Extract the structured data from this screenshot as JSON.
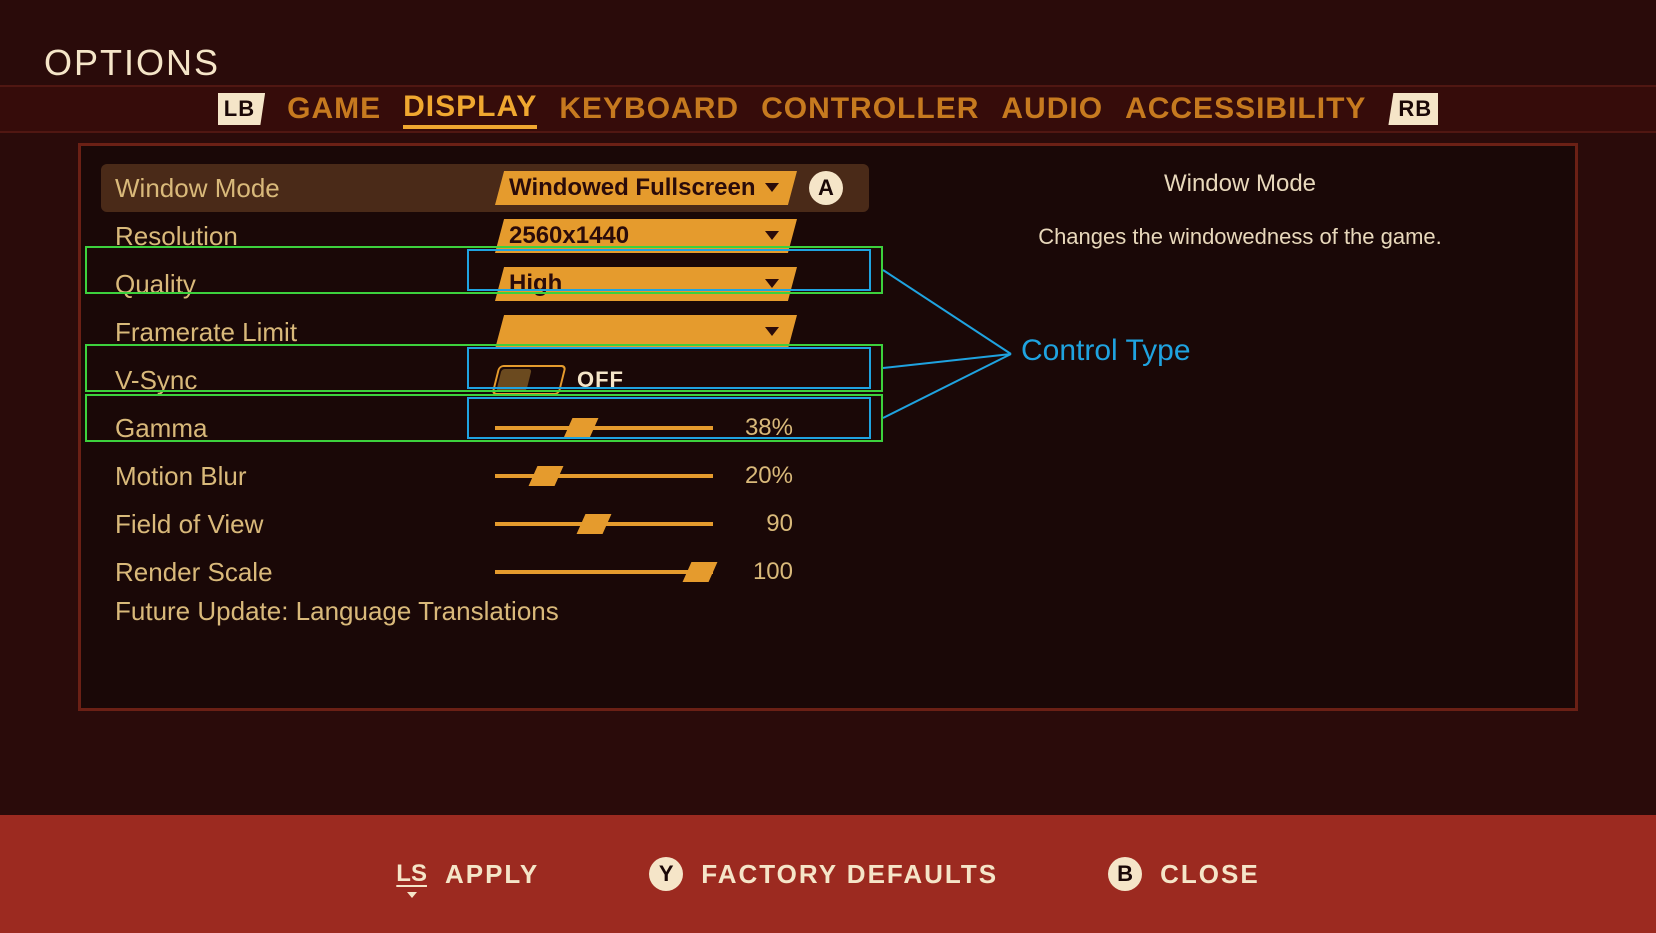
{
  "page_title": "OPTIONS",
  "bumper_left": "LB",
  "bumper_right": "RB",
  "tabs": [
    "GAME",
    "DISPLAY",
    "KEYBOARD",
    "CONTROLLER",
    "AUDIO",
    "ACCESSIBILITY"
  ],
  "active_tab_index": 1,
  "a_button": "A",
  "settings": [
    {
      "label": "Window Mode",
      "type": "dropdown",
      "value": "Windowed Fullscreen",
      "highlighted": true,
      "show_a": true
    },
    {
      "label": "Resolution",
      "type": "dropdown",
      "value": "2560x1440"
    },
    {
      "label": "Quality",
      "type": "dropdown",
      "value": "High"
    },
    {
      "label": "Framerate Limit",
      "type": "dropdown",
      "value": ""
    },
    {
      "label": "V-Sync",
      "type": "toggle",
      "value": "OFF"
    },
    {
      "label": "Gamma",
      "type": "slider",
      "percent": 38,
      "display": "38%"
    },
    {
      "label": "Motion Blur",
      "type": "slider",
      "percent": 20,
      "display": "20%"
    },
    {
      "label": "Field of View",
      "type": "slider",
      "percent": 45,
      "display": "90"
    },
    {
      "label": "Render Scale",
      "type": "slider",
      "percent": 100,
      "display": "100"
    }
  ],
  "future_note": "Future Update: Language Translations",
  "info": {
    "title": "Window Mode",
    "description": "Changes the windowedness of the game."
  },
  "annotation_label": "Control Type",
  "footer": {
    "ls": "LS",
    "apply": "APPLY",
    "y": "Y",
    "factory": "FACTORY DEFAULTS",
    "b": "B",
    "close": "CLOSE"
  },
  "colors": {
    "orange": "#e59b2d",
    "cream": "#f5e5c8",
    "annotation_green": "#3dd13d",
    "annotation_blue": "#1fa3e0"
  }
}
